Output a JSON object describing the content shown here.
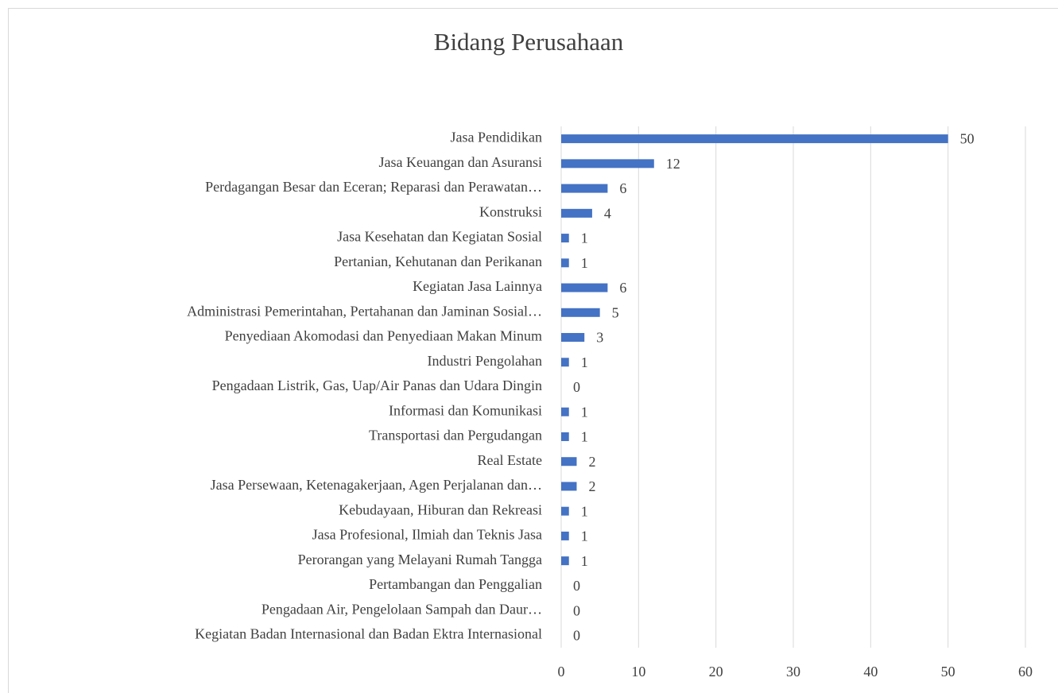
{
  "chart_data": {
    "type": "bar",
    "orientation": "horizontal",
    "title": "Bidang Perusahaan",
    "categories": [
      "Jasa Pendidikan",
      "Jasa Keuangan dan Asuransi",
      "Perdagangan Besar dan Eceran; Reparasi dan Perawatan…",
      "Konstruksi",
      "Jasa Kesehatan dan Kegiatan Sosial",
      "Pertanian, Kehutanan dan Perikanan",
      "Kegiatan Jasa Lainnya",
      "Administrasi Pemerintahan, Pertahanan dan Jaminan Sosial…",
      "Penyediaan Akomodasi dan Penyediaan Makan Minum",
      "Industri Pengolahan",
      "Pengadaan Listrik, Gas, Uap/Air Panas dan Udara Dingin",
      "Informasi dan Komunikasi",
      "Transportasi dan  Pergudangan",
      "Real Estate",
      "Jasa Persewaan, Ketenagakerjaan, Agen Perjalanan dan…",
      "Kebudayaan, Hiburan dan Rekreasi",
      "Jasa Profesional, Ilmiah dan Teknis Jasa",
      "Perorangan yang Melayani Rumah Tangga",
      "Pertambangan dan Penggalian",
      "Pengadaan Air, Pengelolaan Sampah dan Daur…",
      "Kegiatan Badan Internasional dan Badan Ektra Internasional"
    ],
    "values": [
      50,
      12,
      6,
      4,
      1,
      1,
      6,
      5,
      3,
      1,
      0,
      1,
      1,
      2,
      2,
      1,
      1,
      1,
      0,
      0,
      0
    ],
    "color": "#4472c4",
    "xlim": [
      0,
      60
    ],
    "xticks": [
      0,
      10,
      20,
      30,
      40,
      50,
      60
    ],
    "grid": true
  }
}
